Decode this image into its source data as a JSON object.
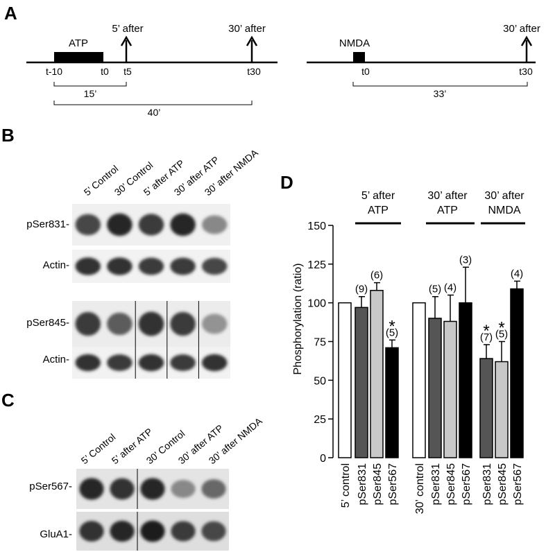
{
  "panels": {
    "a": "A",
    "b": "B",
    "c": "C",
    "d": "D"
  },
  "timeline_atp": {
    "drug": "ATP",
    "arrow1": "5’ after",
    "arrow2": "30’ after",
    "ticks": [
      "t-10",
      "t0",
      "t5",
      "t30"
    ],
    "span1": "15’",
    "span2": "40’"
  },
  "timeline_nmda": {
    "drug": "NMDA",
    "arrow": "30’ after",
    "ticks": [
      "t0",
      "t30"
    ],
    "span": "33’"
  },
  "blot_b": {
    "lanes": [
      "5’ Control",
      "30’ Control",
      "5’ after ATP",
      "30’ after ATP",
      "30’ after NMDA"
    ],
    "rows": [
      "pSer831-",
      "Actin-",
      "pSer845-",
      "Actin-"
    ],
    "band_intensity": {
      "pSer831": [
        0.75,
        0.9,
        0.8,
        0.9,
        0.45
      ],
      "actin1": [
        0.85,
        0.85,
        0.8,
        0.8,
        0.75
      ],
      "pSer845": [
        0.8,
        0.65,
        0.85,
        0.8,
        0.4
      ],
      "actin2": [
        0.85,
        0.8,
        0.85,
        0.8,
        0.85
      ]
    }
  },
  "blot_c": {
    "lanes": [
      "5’ Control",
      "5’ after ATP",
      "30’ Control",
      "30’ after ATP",
      "30’ after NMDA"
    ],
    "rows": [
      "pSer567-",
      "GluA1-"
    ],
    "band_intensity": {
      "pSer567": [
        0.9,
        0.85,
        0.9,
        0.45,
        0.6
      ],
      "glua1": [
        0.85,
        0.9,
        0.95,
        0.8,
        0.75
      ]
    }
  },
  "chart_data": {
    "type": "bar",
    "ylabel": "Phosphorylation (ratio)",
    "ylim": [
      0,
      150
    ],
    "yticks": [
      0,
      25,
      50,
      75,
      100,
      125,
      150
    ],
    "groups": [
      {
        "header": [
          "5’ after",
          "ATP"
        ]
      },
      {
        "header": [
          "30’ after",
          "ATP"
        ]
      },
      {
        "header": [
          "30’ after",
          "NMDA"
        ]
      }
    ],
    "bars": [
      {
        "category": "5’ control",
        "value": 100,
        "error": 0,
        "n": "",
        "star": "",
        "color": "#ffffff"
      },
      {
        "category": "pSer831",
        "value": 97,
        "error": 7,
        "n": "(9)",
        "star": "",
        "color": "#555555"
      },
      {
        "category": "pSer845",
        "value": 108,
        "error": 5,
        "n": "(6)",
        "star": "",
        "color": "#c8c8c8"
      },
      {
        "category": "pSer567",
        "value": 71,
        "error": 5,
        "n": "(5)",
        "star": "*",
        "color": "#000000"
      },
      {
        "category": "30’ control",
        "value": 100,
        "error": 0,
        "n": "",
        "star": "",
        "color": "#ffffff"
      },
      {
        "category": "pSer831",
        "value": 90,
        "error": 14,
        "n": "(5)",
        "star": "",
        "color": "#555555"
      },
      {
        "category": "pSer845",
        "value": 88,
        "error": 17,
        "n": "(4)",
        "star": "",
        "color": "#c8c8c8"
      },
      {
        "category": "pSer567",
        "value": 100,
        "error": 23,
        "n": "(3)",
        "star": "",
        "color": "#000000"
      },
      {
        "category": "pSer831",
        "value": 64,
        "error": 9,
        "n": "(7)",
        "star": "*",
        "color": "#555555"
      },
      {
        "category": "pSer845",
        "value": 62,
        "error": 13,
        "n": "(5)",
        "star": "*",
        "color": "#c8c8c8"
      },
      {
        "category": "pSer567",
        "value": 109,
        "error": 5,
        "n": "(4)",
        "star": "",
        "color": "#000000"
      }
    ]
  }
}
